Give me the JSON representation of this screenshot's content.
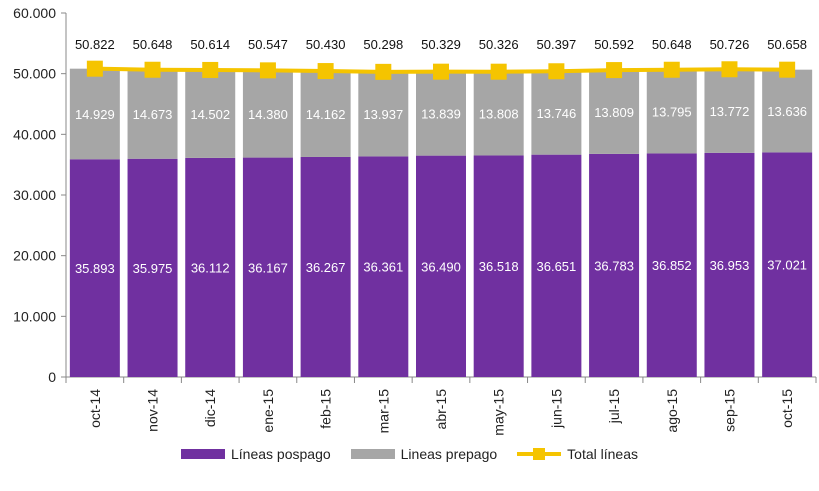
{
  "colors": {
    "pospago": "#7030a0",
    "prepago": "#a6a6a6",
    "total": "#f5c400",
    "axis": "#888888"
  },
  "legend": {
    "pospago_label": "Líneas pospago",
    "prepago_label": "Lineas prepago",
    "total_label": "Total líneas"
  },
  "chart_data": {
    "type": "bar",
    "stacked": true,
    "categories": [
      "oct-14",
      "nov-14",
      "dic-14",
      "ene-15",
      "feb-15",
      "mar-15",
      "abr-15",
      "may-15",
      "jun-15",
      "jul-15",
      "ago-15",
      "sep-15",
      "oct-15"
    ],
    "series": [
      {
        "name": "Líneas pospago",
        "type": "bar",
        "values": [
          35893,
          35975,
          36112,
          36167,
          36267,
          36361,
          36490,
          36518,
          36651,
          36783,
          36852,
          36953,
          37021
        ],
        "labels": [
          "35.893",
          "35.975",
          "36.112",
          "36.167",
          "36.267",
          "36.361",
          "36.490",
          "36.518",
          "36.651",
          "36.783",
          "36.852",
          "36.953",
          "37.021"
        ]
      },
      {
        "name": "Lineas prepago",
        "type": "bar",
        "values": [
          14929,
          14673,
          14502,
          14380,
          14162,
          13937,
          13839,
          13808,
          13746,
          13809,
          13795,
          13772,
          13636
        ],
        "labels": [
          "14.929",
          "14.673",
          "14.502",
          "14.380",
          "14.162",
          "13.937",
          "13.839",
          "13.808",
          "13.746",
          "13.809",
          "13.795",
          "13.772",
          "13.636"
        ]
      },
      {
        "name": "Total líneas",
        "type": "line",
        "values": [
          50822,
          50648,
          50614,
          50547,
          50430,
          50298,
          50329,
          50326,
          50397,
          50592,
          50648,
          50726,
          50658
        ],
        "labels": [
          "50.822",
          "50.648",
          "50.614",
          "50.547",
          "50.430",
          "50.298",
          "50.329",
          "50.326",
          "50.397",
          "50.592",
          "50.648",
          "50.726",
          "50.658"
        ]
      }
    ],
    "ylim": [
      0,
      60000
    ],
    "yticks": [
      0,
      10000,
      20000,
      30000,
      40000,
      50000,
      60000
    ],
    "ytick_labels": [
      "0",
      "10.000",
      "20.000",
      "30.000",
      "40.000",
      "50.000",
      "60.000"
    ],
    "grid": false,
    "legend_position": "bottom"
  }
}
